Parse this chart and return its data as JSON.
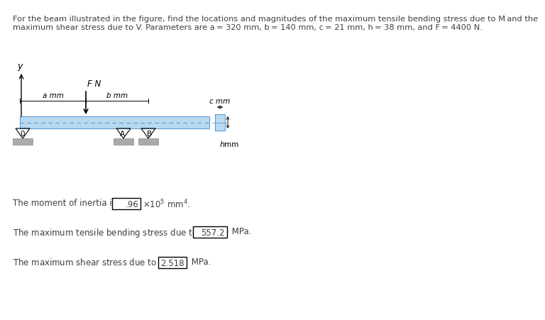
{
  "background_color": "#ffffff",
  "text_color": "#3f3f3f",
  "beam_color": "#b8d9f0",
  "beam_outline": "#5b9bd5",
  "moment_inertia_val": ".96",
  "stress_val": "557.2",
  "shear_val": "2.518",
  "title_line1": "For the beam illustrated in the figure, find the locations and magnitudes of the maximum tensile bending stress due to M and the",
  "title_line2": "maximum shear stress due to V. Parameters are a = 320 mm, b = 140 mm, c = 21 mm, h = 38 mm, and F = 4400 N."
}
